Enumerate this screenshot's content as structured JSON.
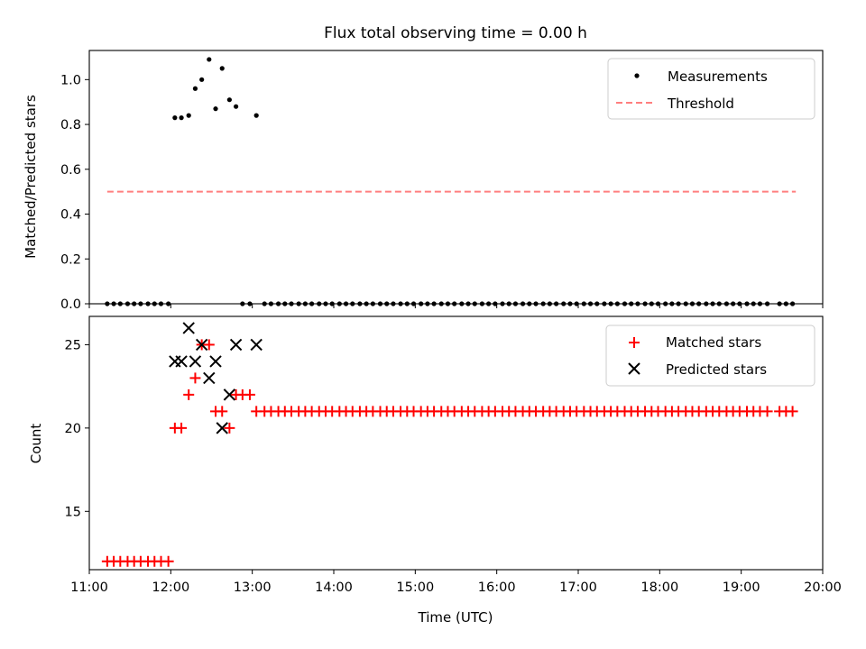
{
  "chart_data": [
    {
      "type": "scatter",
      "title": "Flux total observing time = 0.00 h",
      "xlabel": "",
      "ylabel": "Matched/Predicted stars",
      "xlim": [
        11.0,
        20.0
      ],
      "ylim": [
        0.0,
        1.13
      ],
      "yticks": [
        0.0,
        0.2,
        0.4,
        0.6,
        0.8,
        1.0
      ],
      "ytick_labels": [
        "0.0",
        "0.2",
        "0.4",
        "0.6",
        "0.8",
        "1.0"
      ],
      "legend_position": "top-right",
      "series": [
        {
          "name": "Measurements",
          "marker": "dot",
          "color": "#000000",
          "points": [
            [
              11.22,
              0
            ],
            [
              11.3,
              0
            ],
            [
              11.38,
              0
            ],
            [
              11.47,
              0
            ],
            [
              11.55,
              0
            ],
            [
              11.63,
              0
            ],
            [
              11.72,
              0
            ],
            [
              11.8,
              0
            ],
            [
              11.88,
              0
            ],
            [
              11.97,
              0
            ],
            [
              12.05,
              0.83
            ],
            [
              12.13,
              0.83
            ],
            [
              12.22,
              0.84
            ],
            [
              12.3,
              0.96
            ],
            [
              12.38,
              1.0
            ],
            [
              12.47,
              1.09
            ],
            [
              12.55,
              0.87
            ],
            [
              12.63,
              1.05
            ],
            [
              12.72,
              0.91
            ],
            [
              12.8,
              0.88
            ],
            [
              12.88,
              0
            ],
            [
              12.97,
              0
            ],
            [
              13.05,
              0.84
            ],
            [
              13.15,
              0
            ],
            [
              13.23,
              0
            ],
            [
              13.32,
              0
            ],
            [
              13.4,
              0
            ],
            [
              13.48,
              0
            ],
            [
              13.57,
              0
            ],
            [
              13.65,
              0
            ],
            [
              13.73,
              0
            ],
            [
              13.82,
              0
            ],
            [
              13.9,
              0
            ],
            [
              13.98,
              0
            ],
            [
              14.07,
              0
            ],
            [
              14.15,
              0
            ],
            [
              14.23,
              0
            ],
            [
              14.32,
              0
            ],
            [
              14.4,
              0
            ],
            [
              14.48,
              0
            ],
            [
              14.57,
              0
            ],
            [
              14.65,
              0
            ],
            [
              14.73,
              0
            ],
            [
              14.82,
              0
            ],
            [
              14.9,
              0
            ],
            [
              14.98,
              0
            ],
            [
              15.07,
              0
            ],
            [
              15.15,
              0
            ],
            [
              15.23,
              0
            ],
            [
              15.32,
              0
            ],
            [
              15.4,
              0
            ],
            [
              15.48,
              0
            ],
            [
              15.57,
              0
            ],
            [
              15.65,
              0
            ],
            [
              15.73,
              0
            ],
            [
              15.82,
              0
            ],
            [
              15.9,
              0
            ],
            [
              15.98,
              0
            ],
            [
              16.07,
              0
            ],
            [
              16.15,
              0
            ],
            [
              16.23,
              0
            ],
            [
              16.32,
              0
            ],
            [
              16.4,
              0
            ],
            [
              16.48,
              0
            ],
            [
              16.57,
              0
            ],
            [
              16.65,
              0
            ],
            [
              16.73,
              0
            ],
            [
              16.82,
              0
            ],
            [
              16.9,
              0
            ],
            [
              16.98,
              0
            ],
            [
              17.07,
              0
            ],
            [
              17.15,
              0
            ],
            [
              17.23,
              0
            ],
            [
              17.32,
              0
            ],
            [
              17.4,
              0
            ],
            [
              17.48,
              0
            ],
            [
              17.57,
              0
            ],
            [
              17.65,
              0
            ],
            [
              17.73,
              0
            ],
            [
              17.82,
              0
            ],
            [
              17.9,
              0
            ],
            [
              17.98,
              0
            ],
            [
              18.07,
              0
            ],
            [
              18.15,
              0
            ],
            [
              18.23,
              0
            ],
            [
              18.32,
              0
            ],
            [
              18.4,
              0
            ],
            [
              18.48,
              0
            ],
            [
              18.57,
              0
            ],
            [
              18.65,
              0
            ],
            [
              18.73,
              0
            ],
            [
              18.82,
              0
            ],
            [
              18.9,
              0
            ],
            [
              18.98,
              0
            ],
            [
              19.07,
              0
            ],
            [
              19.15,
              0
            ],
            [
              19.23,
              0
            ],
            [
              19.32,
              0
            ],
            [
              19.47,
              0
            ],
            [
              19.55,
              0
            ],
            [
              19.63,
              0
            ]
          ]
        },
        {
          "name": "Threshold",
          "type": "line",
          "style": "dashed",
          "color": "#ff7f7f",
          "points": [
            [
              11.22,
              0.5
            ],
            [
              19.67,
              0.5
            ]
          ]
        }
      ]
    },
    {
      "type": "scatter",
      "title": "",
      "xlabel": "Time (UTC)",
      "ylabel": "Count",
      "xlim": [
        11.0,
        20.0
      ],
      "ylim": [
        11.5,
        26.7
      ],
      "yticks": [
        15,
        20,
        25
      ],
      "ytick_labels": [
        "15",
        "20",
        "25"
      ],
      "xticks": [
        11,
        12,
        13,
        14,
        15,
        16,
        17,
        18,
        19,
        20
      ],
      "xtick_labels": [
        "11:00",
        "12:00",
        "13:00",
        "14:00",
        "15:00",
        "16:00",
        "17:00",
        "18:00",
        "19:00",
        "20:00"
      ],
      "legend_position": "top-right",
      "series": [
        {
          "name": "Matched stars",
          "marker": "plus",
          "color": "#ff0000",
          "points": [
            [
              11.22,
              12
            ],
            [
              11.3,
              12
            ],
            [
              11.38,
              12
            ],
            [
              11.47,
              12
            ],
            [
              11.55,
              12
            ],
            [
              11.63,
              12
            ],
            [
              11.72,
              12
            ],
            [
              11.8,
              12
            ],
            [
              11.88,
              12
            ],
            [
              11.97,
              12
            ],
            [
              12.05,
              20
            ],
            [
              12.13,
              20
            ],
            [
              12.22,
              22
            ],
            [
              12.3,
              23
            ],
            [
              12.38,
              25
            ],
            [
              12.47,
              25
            ],
            [
              12.55,
              21
            ],
            [
              12.63,
              21
            ],
            [
              12.72,
              20
            ],
            [
              12.8,
              22
            ],
            [
              12.88,
              22
            ],
            [
              12.97,
              22
            ],
            [
              13.05,
              21
            ],
            [
              13.15,
              21
            ],
            [
              13.23,
              21
            ],
            [
              13.32,
              21
            ],
            [
              13.4,
              21
            ],
            [
              13.48,
              21
            ],
            [
              13.57,
              21
            ],
            [
              13.65,
              21
            ],
            [
              13.73,
              21
            ],
            [
              13.82,
              21
            ],
            [
              13.9,
              21
            ],
            [
              13.98,
              21
            ],
            [
              14.07,
              21
            ],
            [
              14.15,
              21
            ],
            [
              14.23,
              21
            ],
            [
              14.32,
              21
            ],
            [
              14.4,
              21
            ],
            [
              14.48,
              21
            ],
            [
              14.57,
              21
            ],
            [
              14.65,
              21
            ],
            [
              14.73,
              21
            ],
            [
              14.82,
              21
            ],
            [
              14.9,
              21
            ],
            [
              14.98,
              21
            ],
            [
              15.07,
              21
            ],
            [
              15.15,
              21
            ],
            [
              15.23,
              21
            ],
            [
              15.32,
              21
            ],
            [
              15.4,
              21
            ],
            [
              15.48,
              21
            ],
            [
              15.57,
              21
            ],
            [
              15.65,
              21
            ],
            [
              15.73,
              21
            ],
            [
              15.82,
              21
            ],
            [
              15.9,
              21
            ],
            [
              15.98,
              21
            ],
            [
              16.07,
              21
            ],
            [
              16.15,
              21
            ],
            [
              16.23,
              21
            ],
            [
              16.32,
              21
            ],
            [
              16.4,
              21
            ],
            [
              16.48,
              21
            ],
            [
              16.57,
              21
            ],
            [
              16.65,
              21
            ],
            [
              16.73,
              21
            ],
            [
              16.82,
              21
            ],
            [
              16.9,
              21
            ],
            [
              16.98,
              21
            ],
            [
              17.07,
              21
            ],
            [
              17.15,
              21
            ],
            [
              17.23,
              21
            ],
            [
              17.32,
              21
            ],
            [
              17.4,
              21
            ],
            [
              17.48,
              21
            ],
            [
              17.57,
              21
            ],
            [
              17.65,
              21
            ],
            [
              17.73,
              21
            ],
            [
              17.82,
              21
            ],
            [
              17.9,
              21
            ],
            [
              17.98,
              21
            ],
            [
              18.07,
              21
            ],
            [
              18.15,
              21
            ],
            [
              18.23,
              21
            ],
            [
              18.32,
              21
            ],
            [
              18.4,
              21
            ],
            [
              18.48,
              21
            ],
            [
              18.57,
              21
            ],
            [
              18.65,
              21
            ],
            [
              18.73,
              21
            ],
            [
              18.82,
              21
            ],
            [
              18.9,
              21
            ],
            [
              18.98,
              21
            ],
            [
              19.07,
              21
            ],
            [
              19.15,
              21
            ],
            [
              19.23,
              21
            ],
            [
              19.32,
              21
            ],
            [
              19.47,
              21
            ],
            [
              19.55,
              21
            ],
            [
              19.63,
              21
            ]
          ]
        },
        {
          "name": "Predicted stars",
          "marker": "x",
          "color": "#000000",
          "points": [
            [
              12.05,
              24
            ],
            [
              12.13,
              24
            ],
            [
              12.22,
              26
            ],
            [
              12.3,
              24
            ],
            [
              12.38,
              25
            ],
            [
              12.47,
              23
            ],
            [
              12.55,
              24
            ],
            [
              12.63,
              20
            ],
            [
              12.72,
              22
            ],
            [
              12.8,
              25
            ],
            [
              13.05,
              25
            ]
          ]
        }
      ]
    }
  ]
}
